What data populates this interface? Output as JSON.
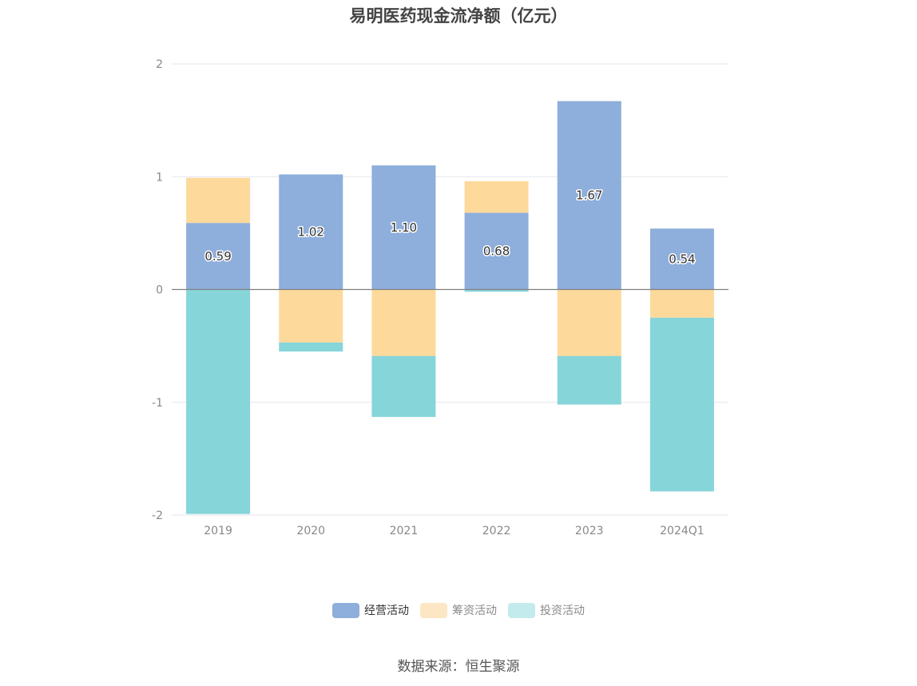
{
  "title": "易明医药现金流净额（亿元）",
  "source": "数据来源：恒生聚源",
  "colors": {
    "operating": "#8eaedb",
    "financing": "#fdd99b",
    "investing": "#86d5d9",
    "financing_legend": "#fde6c3",
    "investing_legend": "#c3eaec"
  },
  "chart_data": {
    "type": "bar",
    "stacked": true,
    "categories": [
      "2019",
      "2020",
      "2021",
      "2022",
      "2023",
      "2024Q1"
    ],
    "series": [
      {
        "name": "经营活动",
        "values": [
          0.59,
          1.02,
          1.1,
          0.68,
          1.67,
          0.54
        ]
      },
      {
        "name": "筹资活动",
        "values": [
          0.4,
          -0.47,
          -0.59,
          0.28,
          -0.59,
          -0.25
        ]
      },
      {
        "name": "投资活动",
        "values": [
          -1.99,
          -0.08,
          -0.54,
          -0.02,
          -0.43,
          -1.54
        ]
      }
    ],
    "data_labels": [
      "0.59",
      "1.02",
      "1.10",
      "0.68",
      "1.67",
      "0.54"
    ],
    "yticks": [
      "2",
      "1",
      "0",
      "-1",
      "-2"
    ],
    "ylim": [
      -2,
      2
    ],
    "grid": true,
    "legend_position": "bottom-center"
  }
}
